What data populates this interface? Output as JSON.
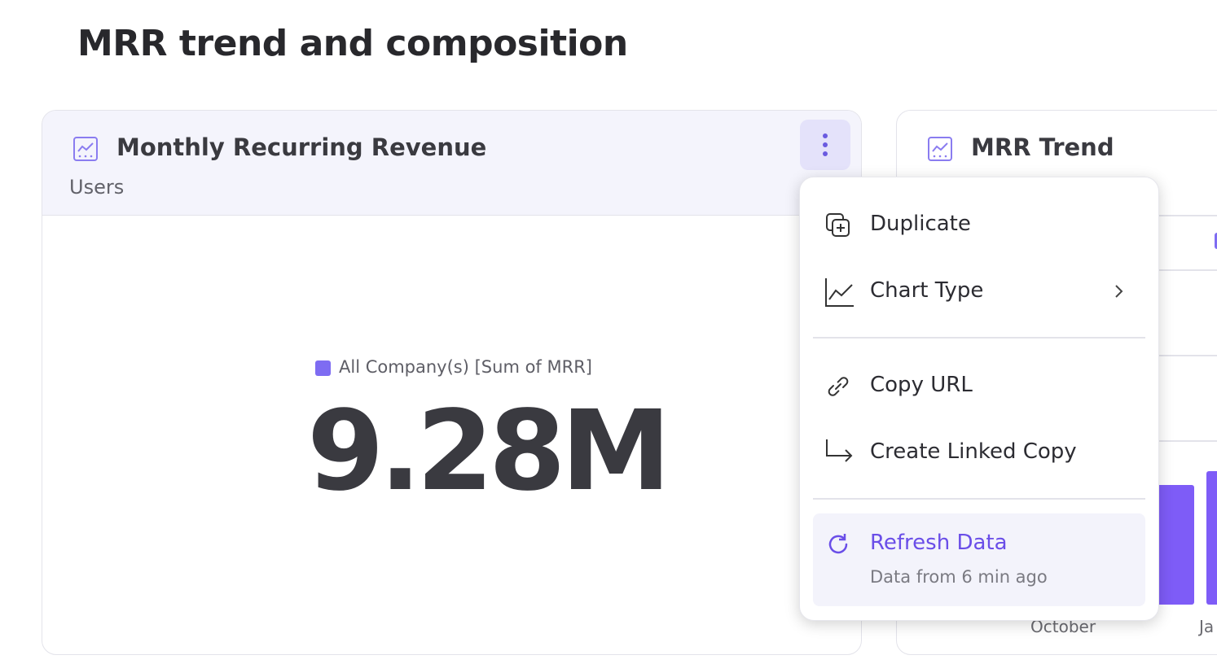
{
  "header": {
    "title": "MRR trend and composition"
  },
  "cards": [
    {
      "title": "Monthly Recurring Revenue",
      "subtitle": "Users",
      "legend": "All Company(s) [Sum of MRR]",
      "value": "9.28M"
    },
    {
      "title": "MRR Trend",
      "x_labels": [
        "October",
        "Ja"
      ]
    }
  ],
  "menu": {
    "items": [
      {
        "label": "Duplicate"
      },
      {
        "label": "Chart Type"
      },
      {
        "label": "Copy URL"
      },
      {
        "label": "Create Linked Copy"
      },
      {
        "label": "Refresh Data",
        "detail": "Data from 6 min ago"
      }
    ]
  }
}
